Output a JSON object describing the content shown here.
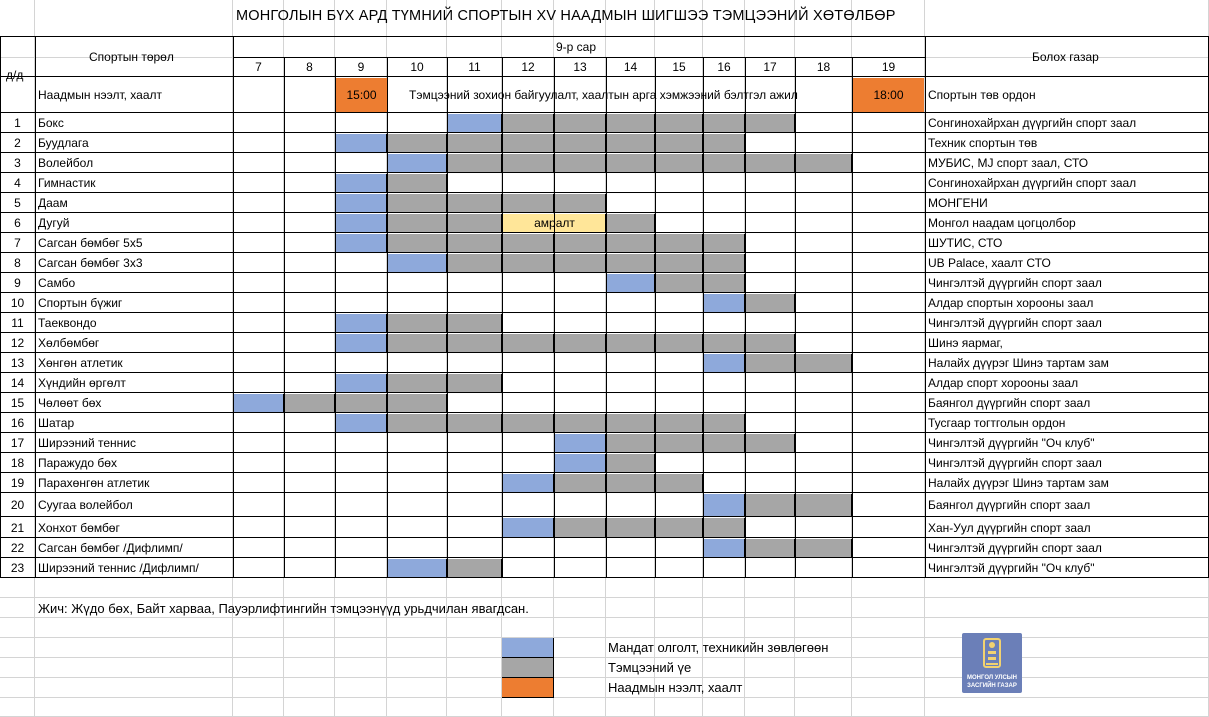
{
  "title": "МОНГОЛЫН БҮХ АРД ТҮМНИЙ СПОРТЫН XV  НААДМЫН ШИГШЭЭ ТЭМЦЭЭНИЙ ХӨТӨЛБӨР",
  "header": {
    "num_label": "д/д",
    "sport_label": "Спортын төрөл",
    "month_label": "9-р сар",
    "days": [
      "7",
      "8",
      "9",
      "10",
      "11",
      "12",
      "13",
      "14",
      "15",
      "16",
      "17",
      "18",
      "19"
    ],
    "venue_label": "Болох газар"
  },
  "ceremony": {
    "label": "Наадмын нээлт, хаалт",
    "open_time": "15:00",
    "note": "Тэмцээний зохион байгуулалт, хаалтын арга хэмжээний бэлтгэл ажил",
    "close_time": "18:00",
    "venue": "Спортын төв ордон"
  },
  "rest_label": "амралт",
  "rows": [
    {
      "num": "1",
      "sport": "Бокс",
      "venue": "Сонгинохайрхан дүүргийн спорт заал",
      "cells": "....BGGGGGG.."
    },
    {
      "num": "2",
      "sport": "Буудлага",
      "venue": "Техник спортын төв",
      "cells": "..BGGGGGGG..."
    },
    {
      "num": "3",
      "sport": "Волейбол",
      "venue": "МУБИС, MJ спорт заал, СТО",
      "cells": "...BGGGGGGGG."
    },
    {
      "num": "4",
      "sport": "Гимнастик",
      "venue": "Сонгинохайрхан дүүргийн спорт заал",
      "cells": "..BG........."
    },
    {
      "num": "5",
      "sport": "Даам",
      "venue": "МОНГЕНИ",
      "cells": "..BGGGG......"
    },
    {
      "num": "6",
      "sport": "Дугуй",
      "venue": "Монгол наадам цогцолбор",
      "cells": "..BGG..G....."
    },
    {
      "num": "7",
      "sport": "Сагсан бөмбөг 5х5",
      "venue": "ШУТИС, СТО",
      "cells": "..BGGGGGGG..."
    },
    {
      "num": "8",
      "sport": "Сагсан бөмбөг 3х3",
      "venue": "UB Palace, хаалт СТО",
      "cells": "...BGGGGGG..."
    },
    {
      "num": "9",
      "sport": "Самбо",
      "venue": "Чингэлтэй дүүргийн спорт заал",
      "cells": ".......BGG..."
    },
    {
      "num": "10",
      "sport": "Спортын бүжиг",
      "venue": "Алдар спортын хорооны заал",
      "cells": ".........BG.."
    },
    {
      "num": "11",
      "sport": "Таеквондо",
      "venue": "Чингэлтэй дүүргийн спорт заал",
      "cells": "..BGG........"
    },
    {
      "num": "12",
      "sport": "Хөлбөмбөг",
      "venue": "Шинэ яармаг,",
      "cells": "..BGGGGGGGG.."
    },
    {
      "num": "13",
      "sport": "Хөнгөн атлетик",
      "venue": "Налайх дүүрэг Шинэ тартам зам",
      "cells": ".........BGG."
    },
    {
      "num": "14",
      "sport": "Хүндийн өргөлт",
      "venue": "Алдар спорт хорооны заал",
      "cells": "..BGG........"
    },
    {
      "num": "15",
      "sport": "Чөлөөт бөх",
      "venue": "Баянгол дүүргийн спорт заал",
      "cells": "BGGG........."
    },
    {
      "num": "16",
      "sport": "Шатар",
      "venue": "Тусгаар тогтголын ордон",
      "cells": "..BGGGGGGG..."
    },
    {
      "num": "17",
      "sport": "Ширээний теннис",
      "venue": "Чингэлтэй дүүргийн \"Оч клуб\"",
      "cells": "......BGGGG.."
    },
    {
      "num": "18",
      "sport": "Паражудо бөх",
      "venue": "Чингэлтэй дүүргийн спорт заал",
      "cells": "......BG....."
    },
    {
      "num": "19",
      "sport": "Парахөнгөн атлетик",
      "venue": "Налайх дүүрэг Шинэ тартам зам",
      "cells": ".....BGGG...."
    },
    {
      "num": "20",
      "sport": "Суугаа волейбол",
      "venue": "Баянгол дүүргийн спорт заал",
      "cells": ".........BGG."
    },
    {
      "num": "21",
      "sport": "Хонхот бөмбөг",
      "venue": "Хан-Уул дүүргийн спорт заал",
      "cells": ".....BGGGG..."
    },
    {
      "num": "22",
      "sport": "Сагсан бөмбөг /Дифлимп/",
      "venue": "Чингэлтэй дүүргийн спорт заал",
      "cells": ".........BGG."
    },
    {
      "num": "23",
      "sport": "Ширээний теннис /Дифлимп/",
      "venue": "Чингэлтэй дүүргийн \"Оч клуб\"",
      "cells": "...BG........"
    }
  ],
  "footnote": "Жич: Жүдо бөх, Байт харваа, Пауэрлифтингийн тэмцээнүүд урьдчилан явагдсан.",
  "legend": [
    {
      "color": "#8ea9db",
      "label": "Мандат олголт, техникийн зөвлөгөөн"
    },
    {
      "color": "#a6a6a6",
      "label": "Тэмцээний үе"
    },
    {
      "color": "#ed7d31",
      "label": "Наадмын нээлт, хаалт"
    }
  ],
  "logo": {
    "line1": "МОНГОЛ УЛСЫН",
    "line2": "ЗАСГИЙН ГАЗАР"
  },
  "colors": {
    "blue": "#8ea9db",
    "gray": "#a6a6a6",
    "orange": "#ed7d31",
    "yellow": "#ffe699",
    "gridline": "#d4d4d4"
  }
}
